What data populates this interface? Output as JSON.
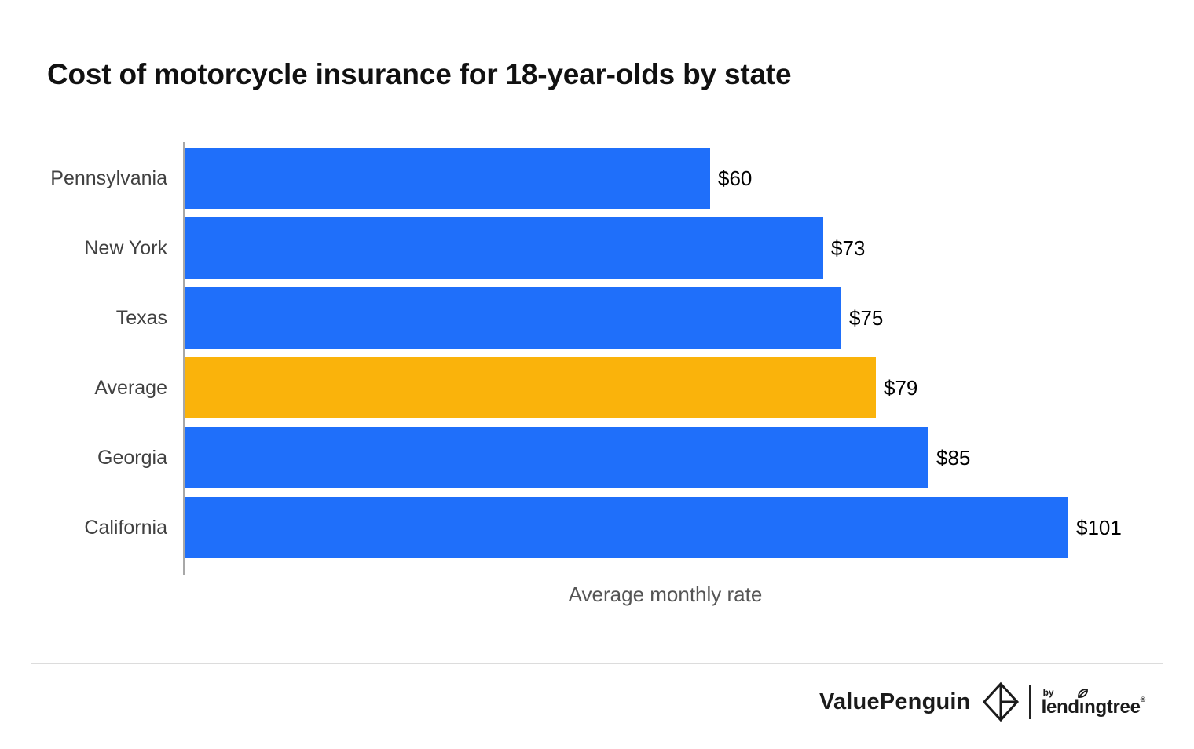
{
  "title": "Cost of motorcycle insurance for 18-year-olds by state",
  "chart_data": {
    "type": "bar",
    "orientation": "horizontal",
    "title": "Cost of motorcycle insurance for 18-year-olds by state",
    "categories": [
      "Pennsylvania",
      "New York",
      "Texas",
      "Average",
      "Georgia",
      "California"
    ],
    "values": [
      60,
      73,
      75,
      79,
      85,
      101
    ],
    "value_labels": [
      "$60",
      "$73",
      "$75",
      "$79",
      "$85",
      "$101"
    ],
    "xlabel": "Average monthly rate",
    "xlim": [
      0,
      110
    ],
    "grid": false,
    "legend": false,
    "bar_color": "#1F6FFA",
    "highlight_color": "#FAB30B",
    "highlight_index": 3,
    "highlight_category": "Average",
    "axis_line_color": "#A8A8A8"
  },
  "footer": {
    "brand": "ValuePenguin",
    "by_label": "by",
    "partner": "lendingtree",
    "registered_mark": "®"
  }
}
